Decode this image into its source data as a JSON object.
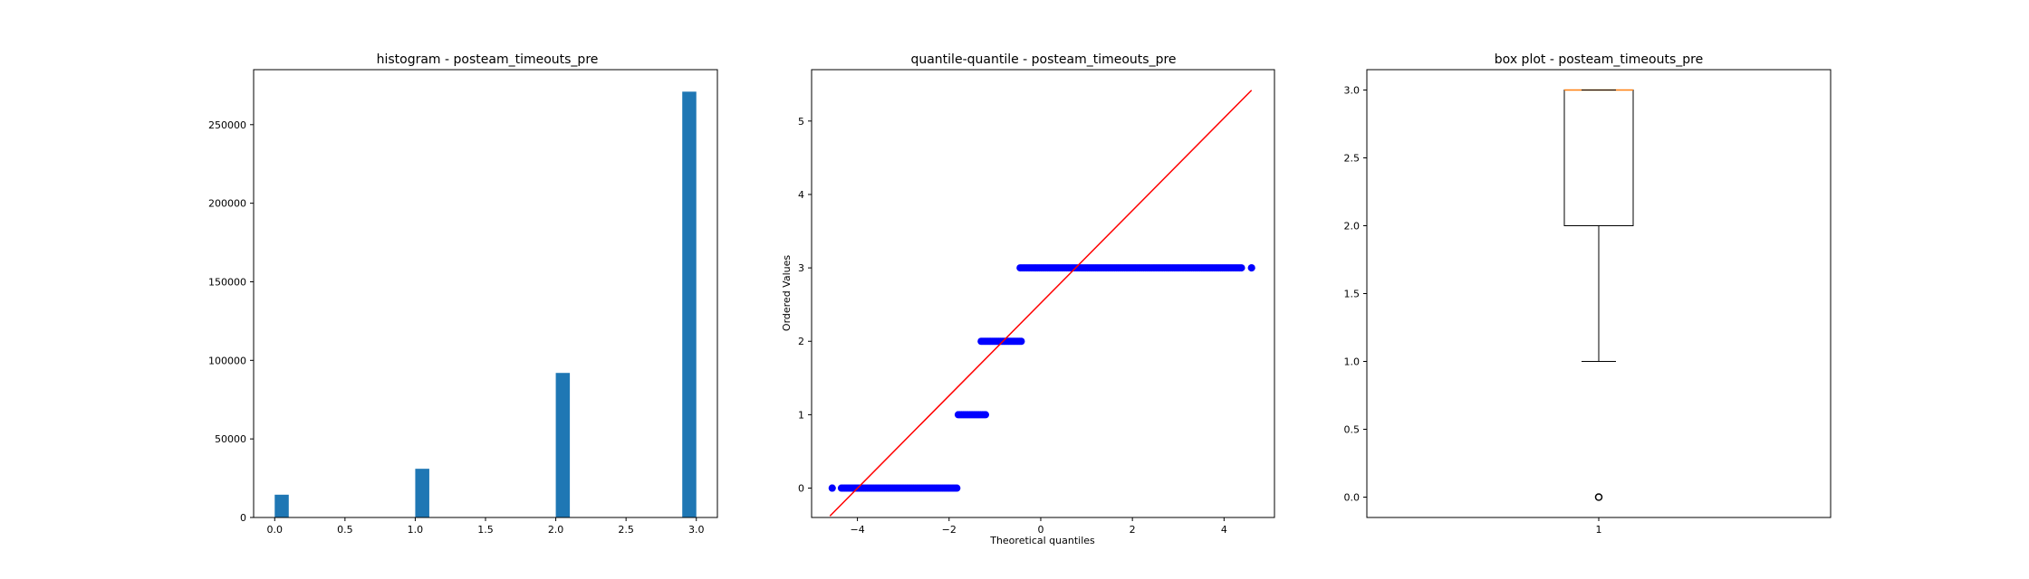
{
  "chart_data": [
    {
      "type": "bar",
      "title": "histogram - posteam_timeouts_pre",
      "xlabel": "",
      "ylabel": "",
      "xlim": [
        -0.15,
        3.15
      ],
      "ylim": [
        0,
        285000
      ],
      "xticks": [
        0.0,
        0.5,
        1.0,
        1.5,
        2.0,
        2.5,
        3.0
      ],
      "xtick_labels": [
        "0.0",
        "0.5",
        "1.0",
        "1.5",
        "2.0",
        "2.5",
        "3.0"
      ],
      "yticks": [
        0,
        50000,
        100000,
        150000,
        200000,
        250000
      ],
      "ytick_labels": [
        "0",
        "50000",
        "100000",
        "150000",
        "200000",
        "250000"
      ],
      "bars": [
        {
          "x0": 0.0,
          "x1": 0.1,
          "value": 14500
        },
        {
          "x0": 1.0,
          "x1": 1.1,
          "value": 31000
        },
        {
          "x0": 2.0,
          "x1": 2.1,
          "value": 92000
        },
        {
          "x0": 2.9,
          "x1": 3.0,
          "value": 271000
        }
      ],
      "color": "#1f77b4",
      "grid": false
    },
    {
      "type": "scatter",
      "title": "quantile-quantile - posteam_timeouts_pre",
      "xlabel": "Theoretical quantiles",
      "ylabel": "Ordered Values",
      "xlim": [
        -5.0,
        5.1
      ],
      "ylim": [
        -0.4,
        5.7
      ],
      "xticks": [
        -4,
        -2,
        0,
        2,
        4
      ],
      "xtick_labels": [
        "−4",
        "−2",
        "0",
        "2",
        "4"
      ],
      "yticks": [
        0,
        1,
        2,
        3,
        4,
        5
      ],
      "ytick_labels": [
        "0",
        "1",
        "2",
        "3",
        "4",
        "5"
      ],
      "point_runs": [
        {
          "y": 0,
          "x_start": -4.55,
          "x_end": -4.55
        },
        {
          "y": 0,
          "x_start": -4.35,
          "x_end": -1.8
        },
        {
          "y": 1,
          "x_start": -1.8,
          "x_end": -1.2
        },
        {
          "y": 2,
          "x_start": -1.3,
          "x_end": -0.4
        },
        {
          "y": 3,
          "x_start": -0.45,
          "x_end": 4.4
        },
        {
          "y": 3,
          "x_start": 4.6,
          "x_end": 4.6
        }
      ],
      "fit_line": {
        "x": [
          -4.6,
          4.6
        ],
        "y": [
          -0.38,
          5.42
        ]
      },
      "point_color": "#0000ff",
      "line_color": "#ff0000",
      "grid": false
    },
    {
      "type": "box",
      "title": "box plot - posteam_timeouts_pre",
      "xlabel": "",
      "ylabel": "",
      "xlim": [
        0.5,
        1.5
      ],
      "ylim": [
        -0.15,
        3.15
      ],
      "xticks": [
        1
      ],
      "xtick_labels": [
        "1"
      ],
      "yticks": [
        0.0,
        0.5,
        1.0,
        1.5,
        2.0,
        2.5,
        3.0
      ],
      "ytick_labels": [
        "0.0",
        "0.5",
        "1.0",
        "1.5",
        "2.0",
        "2.5",
        "3.0"
      ],
      "box": {
        "position": 1,
        "q1": 2.0,
        "median": 3.0,
        "q3": 3.0,
        "whisker_low": 1.0,
        "whisker_high": 3.0,
        "outliers": [
          0.0
        ]
      },
      "median_color": "#ff7f0e",
      "grid": false
    }
  ]
}
